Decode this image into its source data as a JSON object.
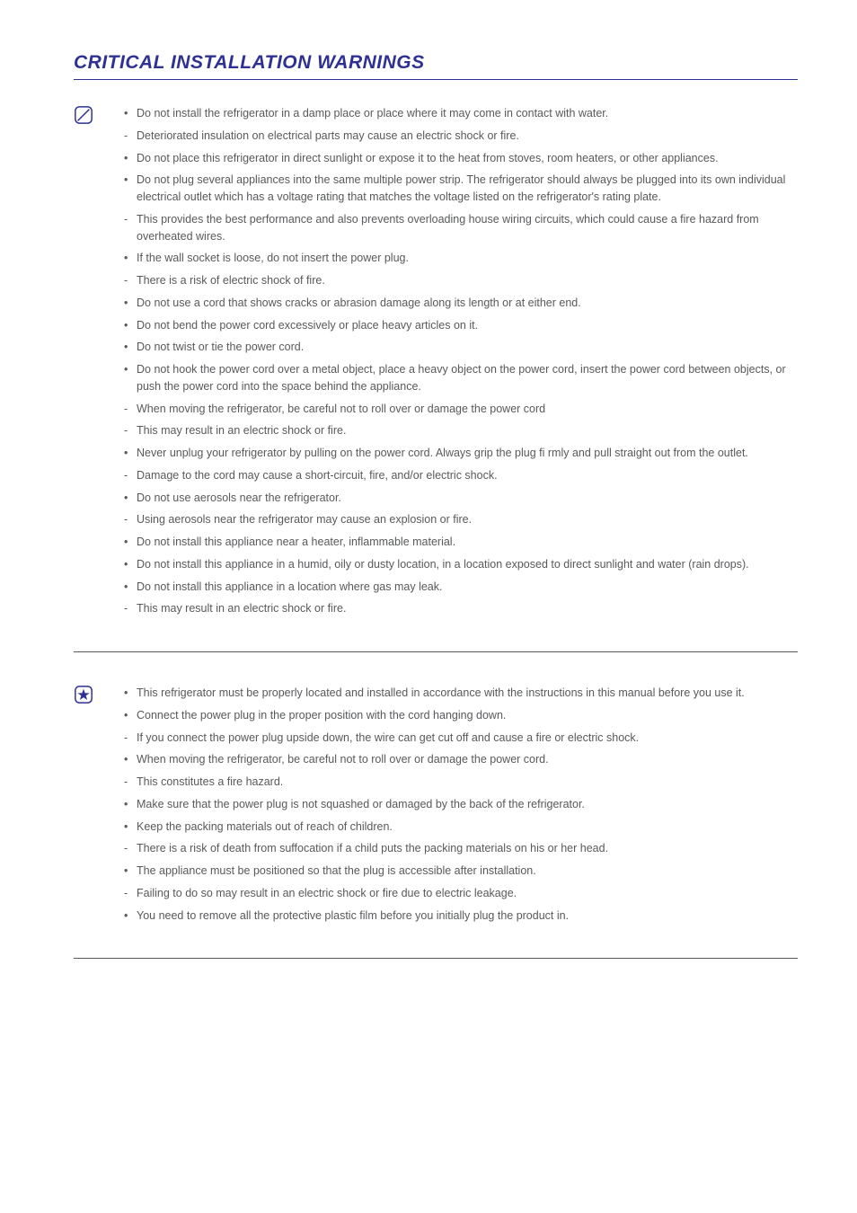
{
  "colors": {
    "title": "#2e3192",
    "text": "#58595b",
    "rule_heavy": "#2e3192",
    "rule_light": "#58595b",
    "icon_stroke": "#2e3192",
    "icon_star_fill": "#2e3192"
  },
  "title": "CRITICAL INSTALLATION WARNINGS",
  "section1": {
    "icon": "prohibit-icon",
    "items": [
      {
        "type": "bullet",
        "text": "Do not install the refrigerator in a damp place or place where it may come in contact with water."
      },
      {
        "type": "dash",
        "text": "Deteriorated insulation on electrical parts may cause an electric shock or fire."
      },
      {
        "type": "bullet",
        "text": "Do not place this refrigerator in direct sunlight or expose it to the heat from stoves, room heaters, or other appliances."
      },
      {
        "type": "bullet",
        "text": "Do not plug several appliances into the same multiple power strip. The refrigerator should always be plugged into its own individual electrical outlet which has a voltage rating that matches the voltage listed on the refrigerator's rating plate."
      },
      {
        "type": "dash",
        "text": "This provides the best performance and also prevents overloading house wiring circuits, which could cause a fire hazard from overheated wires."
      },
      {
        "type": "bullet",
        "text": "If the wall socket is loose, do not insert the power plug."
      },
      {
        "type": "dash",
        "text": "There is a risk of electric shock of fire."
      },
      {
        "type": "bullet",
        "text": "Do not use a cord that shows cracks or abrasion damage along its length or at either end."
      },
      {
        "type": "bullet",
        "text": "Do not bend the power cord excessively or place heavy articles on it."
      },
      {
        "type": "bullet",
        "text": "Do not twist or tie the power cord."
      },
      {
        "type": "bullet",
        "text": "Do not hook the power cord over a metal object, place a heavy object on the power cord, insert the power cord between objects, or push the power cord into the space behind the appliance."
      },
      {
        "type": "dash",
        "text": "When moving the refrigerator, be careful not to roll over or damage the power cord"
      },
      {
        "type": "dash",
        "text": "This may result in an electric shock or fire."
      },
      {
        "type": "bullet",
        "text": "Never unplug your refrigerator by pulling on the power cord. Always grip the plug fi rmly and pull straight out from the outlet."
      },
      {
        "type": "dash",
        "text": "Damage to the cord may cause a short-circuit, fire, and/or electric shock."
      },
      {
        "type": "bullet",
        "text": "Do not use aerosols near the refrigerator."
      },
      {
        "type": "dash",
        "text": "Using aerosols near the refrigerator may cause an explosion or fire."
      },
      {
        "type": "bullet",
        "text": "Do not install this appliance near a heater, inflammable material."
      },
      {
        "type": "bullet",
        "text": "Do not install this appliance in a humid, oily or dusty location, in a location exposed to direct sunlight and water (rain drops)."
      },
      {
        "type": "bullet",
        "text": "Do not install this appliance in a location where gas may leak."
      },
      {
        "type": "dash",
        "text": "This may result in an electric shock or fire."
      }
    ]
  },
  "section2": {
    "icon": "star-box-icon",
    "items": [
      {
        "type": "bullet",
        "text": "This refrigerator must be properly located and installed in accordance with the instructions in this manual before you use it."
      },
      {
        "type": "bullet",
        "text": "Connect the power plug in the proper position with the cord hanging down."
      },
      {
        "type": "dash",
        "text": "If you connect the power plug upside down, the wire can get cut off and cause a fire or electric shock."
      },
      {
        "type": "bullet",
        "text": "When moving the refrigerator, be careful not to roll over or damage the power cord."
      },
      {
        "type": "dash",
        "text": "This constitutes a fire hazard."
      },
      {
        "type": "bullet",
        "text": "Make sure that the power plug is not squashed or damaged by the back of the refrigerator."
      },
      {
        "type": "bullet",
        "text": "Keep the packing materials out of reach of children."
      },
      {
        "type": "dash",
        "text": "There is a risk of death from suffocation if a child puts the packing materials on his or her head."
      },
      {
        "type": "bullet",
        "text": "The appliance must be positioned so that the plug is accessible after installation."
      },
      {
        "type": "dash",
        "text": "Failing to do so may result in an electric shock or fire due to electric leakage."
      },
      {
        "type": "bullet",
        "text": "You need to remove all the protective plastic film before you initially plug the product in."
      }
    ]
  }
}
